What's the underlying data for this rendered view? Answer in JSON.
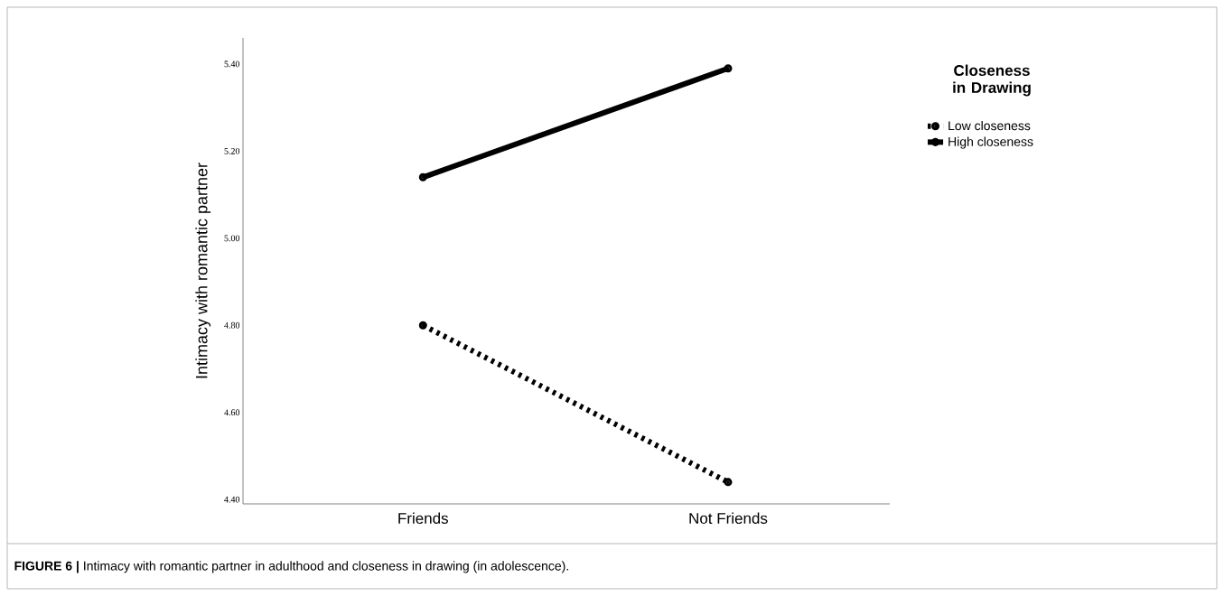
{
  "chart_data": {
    "type": "line",
    "categories": [
      "Friends",
      "Not Friends"
    ],
    "series": [
      {
        "name": "Low closeness",
        "color": "#000000",
        "values": [
          4.8,
          4.44
        ],
        "line_style": "dotted"
      },
      {
        "name": "High closeness",
        "color": "#000000",
        "values": [
          5.14,
          5.39
        ],
        "line_style": "solid"
      }
    ],
    "ylabel": "Intimacy with romantic partner",
    "legend_title": "Closeness in Drawing",
    "legend": "top right",
    "ylim": [
      4.39,
      5.46
    ],
    "yticks": [
      {
        "value": 4.4,
        "label": "4.40"
      },
      {
        "value": 4.6,
        "label": "4.60"
      },
      {
        "value": 4.8,
        "label": "4.80"
      },
      {
        "value": 5.0,
        "label": "5.00"
      },
      {
        "value": 5.2,
        "label": "5.20"
      },
      {
        "value": 5.4,
        "label": "5.40"
      }
    ],
    "marker": "circle",
    "grid": false,
    "annotations": [
      "**FIGURE 6 |** Intimacy with romantic partner in adulthood and closeness in drawing (in adolescence)."
    ]
  }
}
